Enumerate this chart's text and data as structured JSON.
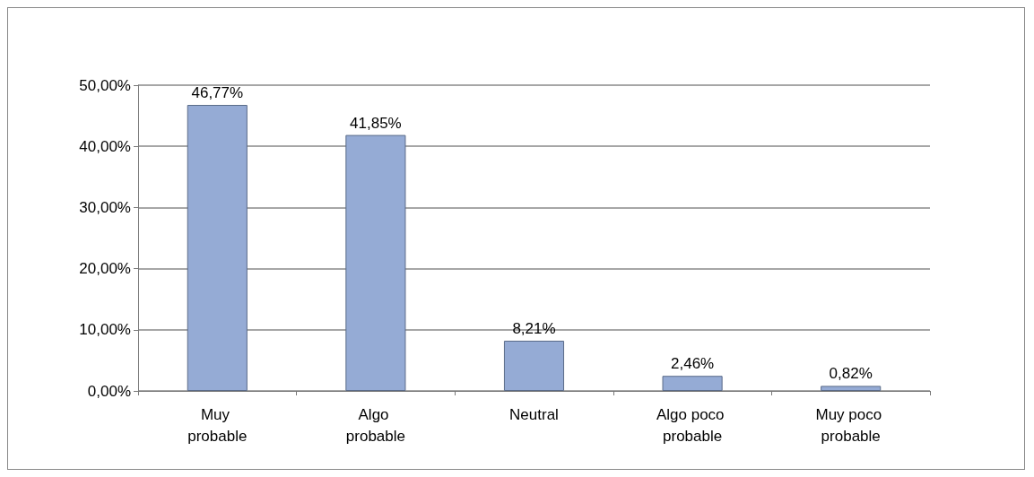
{
  "chart_data": {
    "type": "bar",
    "categories": [
      "Muy probable",
      "Algo probable",
      "Neutral",
      "Algo poco probable",
      "Muy poco probable"
    ],
    "values": [
      46.77,
      41.85,
      8.21,
      2.46,
      0.82
    ],
    "value_labels": [
      "46,77%",
      "41,85%",
      "8,21%",
      "2,46%",
      "0,82%"
    ],
    "color": "#95abd5",
    "ylim": [
      0,
      50
    ],
    "yticks": [
      {
        "value": 0,
        "label": "0,00%"
      },
      {
        "value": 10,
        "label": "10,00%"
      },
      {
        "value": 20,
        "label": "20,00%"
      },
      {
        "value": 30,
        "label": "30,00%"
      },
      {
        "value": 40,
        "label": "40,00%"
      },
      {
        "value": 50,
        "label": "50,00%"
      }
    ],
    "grid": "y"
  }
}
